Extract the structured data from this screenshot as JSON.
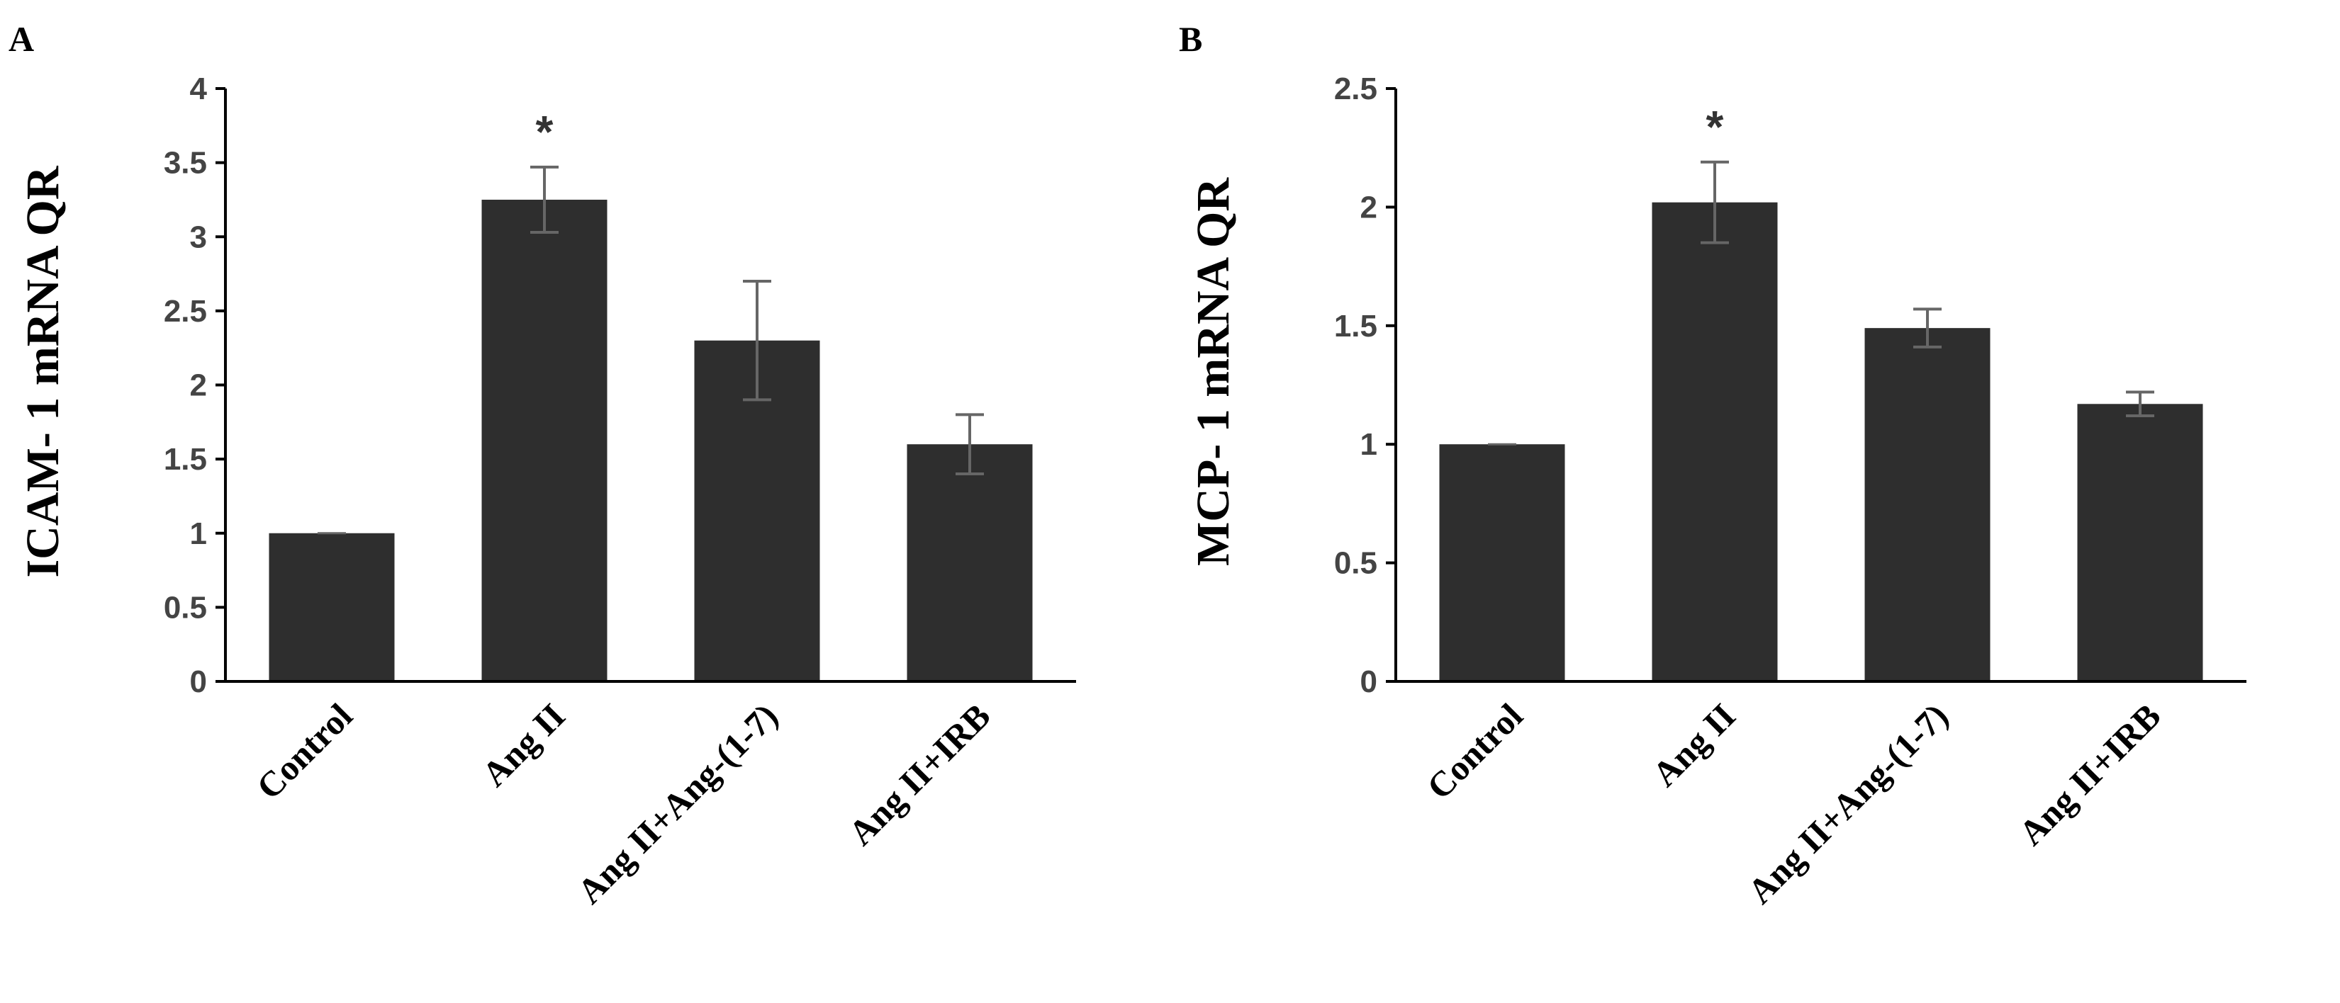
{
  "chart_data": [
    {
      "panel": "A",
      "type": "bar",
      "ylabel": "ICAM- 1 mRNA QR",
      "xlabel": "",
      "ylim": [
        0,
        4
      ],
      "yticks": [
        "0",
        "0.5",
        "1",
        "1.5",
        "2",
        "2.5",
        "3",
        "3.5",
        "4"
      ],
      "categories": [
        "Control",
        "Ang II",
        "Ang II+Ang-(1-7)",
        "Ang II+IRB"
      ],
      "values": [
        1.0,
        3.25,
        2.3,
        1.6
      ],
      "errors": [
        0.0,
        0.22,
        0.4,
        0.2
      ],
      "annotations": [
        "",
        "*",
        "",
        ""
      ],
      "grid": false,
      "colors": {
        "bar": "#2e2e2e",
        "error": "#666666",
        "axis": "#000000"
      }
    },
    {
      "panel": "B",
      "type": "bar",
      "ylabel": "MCP- 1 mRNA QR",
      "xlabel": "",
      "ylim": [
        0,
        2.5
      ],
      "yticks": [
        "0",
        "0.5",
        "1",
        "1.5",
        "2",
        "2.5"
      ],
      "categories": [
        "Control",
        "Ang II",
        "Ang II+Ang-(1-7)",
        "Ang II+IRB"
      ],
      "values": [
        1.0,
        2.02,
        1.49,
        1.17
      ],
      "errors": [
        0.0,
        0.17,
        0.08,
        0.05
      ],
      "annotations": [
        "",
        "*",
        "",
        ""
      ],
      "grid": false,
      "colors": {
        "bar": "#2e2e2e",
        "error": "#666666",
        "axis": "#000000"
      }
    }
  ]
}
